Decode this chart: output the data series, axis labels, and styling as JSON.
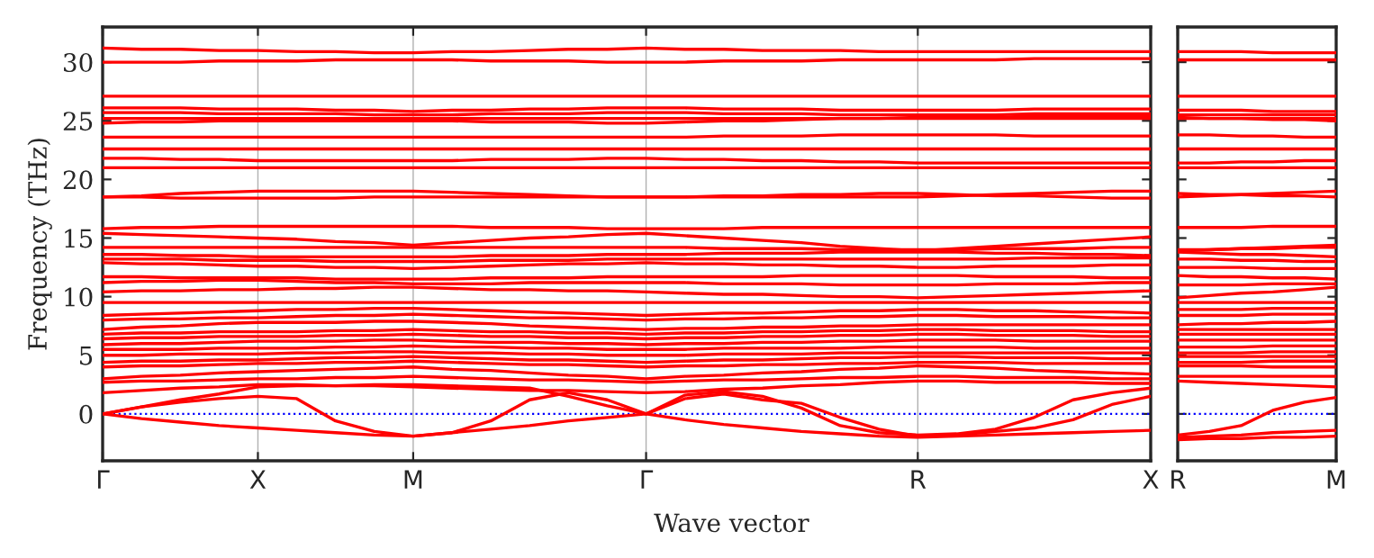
{
  "chart_data": [
    {
      "type": "line",
      "xlabel": "Wave vector",
      "ylabel": "Frequency (THz)",
      "ylim": [
        -4,
        33
      ],
      "categories": [
        "Γ",
        null,
        null,
        null,
        "X",
        null,
        null,
        null,
        "M",
        null,
        null,
        null,
        null,
        null,
        "Γ",
        null,
        null,
        null,
        null,
        null,
        null,
        "R",
        null,
        null,
        null,
        null,
        null,
        "X"
      ],
      "yticks": [
        0,
        5,
        10,
        15,
        20,
        25,
        30
      ],
      "grid": "x",
      "line_style": "solid",
      "marker": "none",
      "ref_lines": [
        {
          "axis": "y",
          "value": 0,
          "color": "#0000ff",
          "line_style": "dotted"
        }
      ],
      "series": [
        {
          "color": "#ff0000",
          "values": [
            31.2,
            31.1,
            31.1,
            31.0,
            31.0,
            30.9,
            30.9,
            30.8,
            30.8,
            30.9,
            30.9,
            31.0,
            31.1,
            31.1,
            31.2,
            31.1,
            31.1,
            31.0,
            31.0,
            31.0,
            30.9,
            30.9,
            30.9,
            30.9,
            30.9,
            30.9,
            30.9,
            30.9
          ]
        },
        {
          "color": "#ff0000",
          "values": [
            30.0,
            30.0,
            30.0,
            30.1,
            30.1,
            30.1,
            30.2,
            30.2,
            30.2,
            30.2,
            30.1,
            30.1,
            30.1,
            30.0,
            30.0,
            30.0,
            30.1,
            30.1,
            30.1,
            30.2,
            30.2,
            30.2,
            30.2,
            30.2,
            30.3,
            30.3,
            30.3,
            30.3
          ]
        },
        {
          "color": "#ff0000",
          "values": [
            27.1,
            27.1,
            27.1,
            27.1,
            27.1,
            27.1,
            27.1,
            27.1,
            27.1,
            27.1,
            27.1,
            27.1,
            27.1,
            27.1,
            27.1,
            27.1,
            27.1,
            27.1,
            27.1,
            27.1,
            27.1,
            27.1,
            27.1,
            27.1,
            27.1,
            27.1,
            27.1,
            27.1
          ]
        },
        {
          "color": "#ff0000",
          "values": [
            26.1,
            26.1,
            26.1,
            26.0,
            26.0,
            26.0,
            25.9,
            25.9,
            25.8,
            25.9,
            25.9,
            26.0,
            26.0,
            26.1,
            26.1,
            26.1,
            26.0,
            26.0,
            26.0,
            25.9,
            25.9,
            25.9,
            25.9,
            25.9,
            26.0,
            26.0,
            26.0,
            26.0
          ]
        },
        {
          "color": "#ff0000",
          "values": [
            25.7,
            25.7,
            25.7,
            25.6,
            25.6,
            25.6,
            25.6,
            25.5,
            25.5,
            25.5,
            25.6,
            25.6,
            25.6,
            25.7,
            25.7,
            25.7,
            25.6,
            25.6,
            25.6,
            25.5,
            25.5,
            25.5,
            25.5,
            25.5,
            25.6,
            25.6,
            25.6,
            25.6
          ]
        },
        {
          "color": "#ff0000",
          "values": [
            25.2,
            25.2,
            25.2,
            25.2,
            25.2,
            25.2,
            25.2,
            25.2,
            25.2,
            25.2,
            25.2,
            25.2,
            25.2,
            25.2,
            25.2,
            25.2,
            25.2,
            25.2,
            25.2,
            25.2,
            25.2,
            25.2,
            25.2,
            25.2,
            25.2,
            25.2,
            25.2,
            25.2
          ]
        },
        {
          "color": "#ff0000",
          "values": [
            24.8,
            24.9,
            24.9,
            25.0,
            25.0,
            25.0,
            25.0,
            25.0,
            25.0,
            25.0,
            24.9,
            24.9,
            24.9,
            24.8,
            24.8,
            24.9,
            25.0,
            25.0,
            25.1,
            25.2,
            25.2,
            25.3,
            25.3,
            25.3,
            25.4,
            25.4,
            25.4,
            25.4
          ]
        },
        {
          "color": "#ff0000",
          "values": [
            23.6,
            23.6,
            23.6,
            23.6,
            23.6,
            23.6,
            23.6,
            23.6,
            23.6,
            23.6,
            23.6,
            23.6,
            23.6,
            23.6,
            23.6,
            23.6,
            23.7,
            23.7,
            23.7,
            23.8,
            23.8,
            23.8,
            23.8,
            23.8,
            23.7,
            23.7,
            23.7,
            23.7
          ]
        },
        {
          "color": "#ff0000",
          "values": [
            22.6,
            22.6,
            22.6,
            22.6,
            22.6,
            22.6,
            22.6,
            22.6,
            22.6,
            22.6,
            22.6,
            22.6,
            22.6,
            22.6,
            22.6,
            22.6,
            22.6,
            22.6,
            22.6,
            22.6,
            22.6,
            22.6,
            22.6,
            22.6,
            22.6,
            22.6,
            22.6,
            22.6
          ]
        },
        {
          "color": "#ff0000",
          "values": [
            21.8,
            21.8,
            21.7,
            21.7,
            21.6,
            21.6,
            21.6,
            21.6,
            21.6,
            21.6,
            21.7,
            21.7,
            21.7,
            21.8,
            21.8,
            21.7,
            21.7,
            21.6,
            21.6,
            21.5,
            21.5,
            21.4,
            21.4,
            21.4,
            21.4,
            21.4,
            21.4,
            21.4
          ]
        },
        {
          "color": "#ff0000",
          "values": [
            21.0,
            21.0,
            21.0,
            21.0,
            21.0,
            21.0,
            21.0,
            21.0,
            21.0,
            21.0,
            21.0,
            21.0,
            21.0,
            21.0,
            21.0,
            21.0,
            21.0,
            21.0,
            21.0,
            21.0,
            21.0,
            21.0,
            21.0,
            21.0,
            21.0,
            21.0,
            21.0,
            21.0
          ]
        },
        {
          "color": "#ff0000",
          "values": [
            18.5,
            18.6,
            18.8,
            18.9,
            19.0,
            19.0,
            19.0,
            19.0,
            19.0,
            18.9,
            18.8,
            18.7,
            18.6,
            18.5,
            18.5,
            18.5,
            18.5,
            18.5,
            18.5,
            18.5,
            18.5,
            18.5,
            18.6,
            18.7,
            18.8,
            18.9,
            19.0,
            19.0
          ]
        },
        {
          "color": "#ff0000",
          "values": [
            18.5,
            18.5,
            18.4,
            18.4,
            18.4,
            18.4,
            18.4,
            18.5,
            18.5,
            18.5,
            18.5,
            18.5,
            18.5,
            18.5,
            18.5,
            18.5,
            18.6,
            18.6,
            18.7,
            18.7,
            18.8,
            18.8,
            18.7,
            18.6,
            18.6,
            18.5,
            18.4,
            18.4
          ]
        },
        {
          "color": "#ff0000",
          "values": [
            15.8,
            15.9,
            15.9,
            16.0,
            16.0,
            16.0,
            16.0,
            16.0,
            16.0,
            16.0,
            15.9,
            15.9,
            15.9,
            15.8,
            15.8,
            15.8,
            15.8,
            15.9,
            15.9,
            15.9,
            15.9,
            15.9,
            15.9,
            15.9,
            15.9,
            15.9,
            15.9,
            15.9
          ]
        },
        {
          "color": "#ff0000",
          "values": [
            15.4,
            15.3,
            15.2,
            15.1,
            15.0,
            14.9,
            14.7,
            14.6,
            14.4,
            14.6,
            14.8,
            15.0,
            15.1,
            15.3,
            15.4,
            15.2,
            15.0,
            14.8,
            14.6,
            14.3,
            14.1,
            13.9,
            14.1,
            14.3,
            14.5,
            14.7,
            14.9,
            15.1
          ]
        },
        {
          "color": "#ff0000",
          "values": [
            14.2,
            14.2,
            14.2,
            14.2,
            14.2,
            14.2,
            14.2,
            14.2,
            14.2,
            14.2,
            14.2,
            14.2,
            14.2,
            14.2,
            14.2,
            14.2,
            14.1,
            14.1,
            14.1,
            14.0,
            14.0,
            14.0,
            14.0,
            14.1,
            14.1,
            14.1,
            14.2,
            14.2
          ]
        },
        {
          "color": "#ff0000",
          "values": [
            13.6,
            13.6,
            13.5,
            13.5,
            13.4,
            13.4,
            13.4,
            13.4,
            13.4,
            13.4,
            13.5,
            13.5,
            13.5,
            13.6,
            13.6,
            13.6,
            13.7,
            13.7,
            13.7,
            13.8,
            13.8,
            13.8,
            13.8,
            13.7,
            13.7,
            13.6,
            13.6,
            13.5
          ]
        },
        {
          "color": "#ff0000",
          "values": [
            13.2,
            13.2,
            13.2,
            13.1,
            13.1,
            13.1,
            13.0,
            13.0,
            13.0,
            13.0,
            13.1,
            13.1,
            13.1,
            13.2,
            13.2,
            13.2,
            13.2,
            13.2,
            13.2,
            13.2,
            13.2,
            13.2,
            13.2,
            13.2,
            13.3,
            13.3,
            13.3,
            13.3
          ]
        },
        {
          "color": "#ff0000",
          "values": [
            12.9,
            12.8,
            12.8,
            12.7,
            12.6,
            12.6,
            12.5,
            12.5,
            12.4,
            12.5,
            12.6,
            12.7,
            12.8,
            12.8,
            12.9,
            12.8,
            12.8,
            12.7,
            12.7,
            12.6,
            12.6,
            12.5,
            12.5,
            12.6,
            12.6,
            12.6,
            12.7,
            12.7
          ]
        },
        {
          "color": "#ff0000",
          "values": [
            11.7,
            11.7,
            11.6,
            11.6,
            11.6,
            11.6,
            11.5,
            11.5,
            11.5,
            11.5,
            11.6,
            11.6,
            11.6,
            11.7,
            11.7,
            11.7,
            11.7,
            11.7,
            11.8,
            11.8,
            11.8,
            11.8,
            11.8,
            11.7,
            11.7,
            11.7,
            11.6,
            11.6
          ]
        },
        {
          "color": "#ff0000",
          "values": [
            11.2,
            11.3,
            11.3,
            11.4,
            11.4,
            11.3,
            11.2,
            11.2,
            11.1,
            11.1,
            11.1,
            11.2,
            11.2,
            11.2,
            11.2,
            11.2,
            11.1,
            11.1,
            11.1,
            11.0,
            11.0,
            11.0,
            11.0,
            11.1,
            11.1,
            11.1,
            11.2,
            11.2
          ]
        },
        {
          "color": "#ff0000",
          "values": [
            10.4,
            10.5,
            10.5,
            10.6,
            10.6,
            10.7,
            10.7,
            10.8,
            10.8,
            10.7,
            10.6,
            10.6,
            10.5,
            10.5,
            10.4,
            10.3,
            10.2,
            10.2,
            10.1,
            10.0,
            10.0,
            9.9,
            10.0,
            10.1,
            10.2,
            10.3,
            10.4,
            10.5
          ]
        },
        {
          "color": "#ff0000",
          "values": [
            9.5,
            9.5,
            9.5,
            9.5,
            9.5,
            9.5,
            9.5,
            9.5,
            9.5,
            9.5,
            9.5,
            9.5,
            9.5,
            9.5,
            9.5,
            9.5,
            9.5,
            9.5,
            9.5,
            9.5,
            9.5,
            9.5,
            9.5,
            9.5,
            9.5,
            9.5,
            9.5,
            9.5
          ]
        },
        {
          "color": "#ff0000",
          "values": [
            8.4,
            8.5,
            8.6,
            8.7,
            8.8,
            8.9,
            8.9,
            9.0,
            9.0,
            8.9,
            8.8,
            8.7,
            8.6,
            8.5,
            8.4,
            8.5,
            8.6,
            8.6,
            8.7,
            8.8,
            8.8,
            8.9,
            8.9,
            8.8,
            8.8,
            8.7,
            8.7,
            8.6
          ]
        },
        {
          "color": "#ff0000",
          "values": [
            8.0,
            8.1,
            8.1,
            8.2,
            8.2,
            8.3,
            8.4,
            8.4,
            8.5,
            8.4,
            8.3,
            8.2,
            8.2,
            8.1,
            8.0,
            8.1,
            8.1,
            8.2,
            8.2,
            8.3,
            8.3,
            8.4,
            8.4,
            8.3,
            8.3,
            8.3,
            8.2,
            8.2
          ]
        },
        {
          "color": "#ff0000",
          "values": [
            7.2,
            7.4,
            7.5,
            7.7,
            7.8,
            7.8,
            7.8,
            7.9,
            7.9,
            7.8,
            7.7,
            7.5,
            7.4,
            7.3,
            7.2,
            7.3,
            7.3,
            7.4,
            7.4,
            7.5,
            7.5,
            7.6,
            7.6,
            7.6,
            7.6,
            7.6,
            7.6,
            7.6
          ]
        },
        {
          "color": "#ff0000",
          "values": [
            6.8,
            6.9,
            6.9,
            7.0,
            7.0,
            7.0,
            7.1,
            7.1,
            7.2,
            7.1,
            7.0,
            7.0,
            6.9,
            6.9,
            6.8,
            6.9,
            6.9,
            7.0,
            7.0,
            7.1,
            7.1,
            7.2,
            7.2,
            7.1,
            7.1,
            7.1,
            7.0,
            7.0
          ]
        },
        {
          "color": "#ff0000",
          "values": [
            6.4,
            6.5,
            6.5,
            6.6,
            6.6,
            6.6,
            6.7,
            6.7,
            6.8,
            6.7,
            6.6,
            6.6,
            6.5,
            6.5,
            6.4,
            6.5,
            6.5,
            6.6,
            6.6,
            6.7,
            6.7,
            6.8,
            6.8,
            6.7,
            6.7,
            6.7,
            6.6,
            6.6
          ]
        },
        {
          "color": "#ff0000",
          "values": [
            5.9,
            6.0,
            6.0,
            6.1,
            6.2,
            6.2,
            6.2,
            6.3,
            6.3,
            6.2,
            6.1,
            6.1,
            6.0,
            6.0,
            5.9,
            6.0,
            6.0,
            6.1,
            6.1,
            6.2,
            6.2,
            6.3,
            6.3,
            6.3,
            6.2,
            6.2,
            6.2,
            6.2
          ]
        },
        {
          "color": "#ff0000",
          "values": [
            5.5,
            5.5,
            5.5,
            5.6,
            5.6,
            5.6,
            5.7,
            5.7,
            5.8,
            5.7,
            5.7,
            5.6,
            5.6,
            5.5,
            5.5,
            5.5,
            5.6,
            5.6,
            5.6,
            5.6,
            5.7,
            5.7,
            5.7,
            5.7,
            5.6,
            5.6,
            5.6,
            5.6
          ]
        },
        {
          "color": "#ff0000",
          "values": [
            5.0,
            5.0,
            5.1,
            5.1,
            5.1,
            5.2,
            5.2,
            5.3,
            5.3,
            5.2,
            5.2,
            5.1,
            5.1,
            5.0,
            5.0,
            5.0,
            5.1,
            5.1,
            5.1,
            5.2,
            5.2,
            5.2,
            5.2,
            5.2,
            5.2,
            5.2,
            5.2,
            5.2
          ]
        },
        {
          "color": "#ff0000",
          "values": [
            4.4,
            4.5,
            4.5,
            4.6,
            4.6,
            4.7,
            4.8,
            4.8,
            4.9,
            4.8,
            4.7,
            4.6,
            4.6,
            4.5,
            4.4,
            4.5,
            4.6,
            4.6,
            4.7,
            4.8,
            4.8,
            4.9,
            4.9,
            4.8,
            4.8,
            4.8,
            4.7,
            4.7
          ]
        },
        {
          "color": "#ff0000",
          "values": [
            4.0,
            4.1,
            4.1,
            4.2,
            4.3,
            4.3,
            4.4,
            4.4,
            4.5,
            4.4,
            4.3,
            4.2,
            4.2,
            4.1,
            4.0,
            4.1,
            4.1,
            4.2,
            4.2,
            4.3,
            4.3,
            4.4,
            4.4,
            4.4,
            4.3,
            4.3,
            4.3,
            4.3
          ]
        },
        {
          "color": "#ff0000",
          "values": [
            3.0,
            3.2,
            3.3,
            3.5,
            3.6,
            3.7,
            3.8,
            3.9,
            4.0,
            3.8,
            3.7,
            3.5,
            3.3,
            3.2,
            3.0,
            3.2,
            3.3,
            3.5,
            3.6,
            3.8,
            3.9,
            4.1,
            4.0,
            3.9,
            3.7,
            3.6,
            3.5,
            3.4
          ]
        },
        {
          "color": "#ff0000",
          "values": [
            2.7,
            2.8,
            2.8,
            2.9,
            3.0,
            3.0,
            3.1,
            3.1,
            3.2,
            3.1,
            3.0,
            2.9,
            2.9,
            2.8,
            2.7,
            2.8,
            2.9,
            2.9,
            3.0,
            3.1,
            3.1,
            3.2,
            3.2,
            3.1,
            3.1,
            3.1,
            3.0,
            3.0
          ]
        },
        {
          "color": "#ff0000",
          "values": [
            1.8,
            2.0,
            2.2,
            2.3,
            2.5,
            2.5,
            2.4,
            2.4,
            2.3,
            2.2,
            2.1,
            2.0,
            2.0,
            1.9,
            1.8,
            1.9,
            2.1,
            2.2,
            2.4,
            2.5,
            2.7,
            2.8,
            2.8,
            2.7,
            2.7,
            2.7,
            2.6,
            2.6
          ]
        },
        {
          "color": "#ff0000",
          "values": [
            0,
            -0.4,
            -0.7,
            -1.0,
            -1.2,
            -1.4,
            -1.6,
            -1.8,
            -1.9,
            -1.6,
            -1.3,
            -1.0,
            -0.6,
            -0.3,
            0,
            -0.5,
            -0.9,
            -1.2,
            -1.5,
            -1.7,
            -1.9,
            -2.0,
            -1.9,
            -1.8,
            -1.7,
            -1.6,
            -1.5,
            -1.4
          ]
        },
        {
          "color": "#ff0000",
          "values": [
            0,
            0.6,
            1.2,
            1.7,
            2.3,
            2.4,
            2.4,
            2.5,
            2.5,
            2.4,
            2.3,
            2.2,
            1.5,
            0.7,
            0,
            1.6,
            1.9,
            1.5,
            0.5,
            -1.0,
            -1.6,
            -1.8,
            -1.7,
            -1.3,
            -0.3,
            1.2,
            1.8,
            2.2
          ]
        },
        {
          "color": "#ff0000",
          "values": [
            0,
            0.6,
            1.0,
            1.3,
            1.5,
            1.3,
            -0.6,
            -1.5,
            -1.9,
            -1.6,
            -0.6,
            1.2,
            1.8,
            1.2,
            0,
            1.3,
            1.7,
            1.2,
            0.9,
            -0.3,
            -1.3,
            -1.9,
            -1.8,
            -1.5,
            -1.2,
            -0.5,
            0.8,
            1.5
          ]
        }
      ]
    },
    {
      "type": "line",
      "ylim": [
        -4,
        33
      ],
      "tick_labels": "x",
      "categories": [
        "R",
        null,
        null,
        null,
        null,
        "M"
      ],
      "yticks": [
        0,
        5,
        10,
        15,
        20,
        25,
        30
      ],
      "line_style": "solid",
      "marker": "none",
      "ref_lines": [
        {
          "axis": "y",
          "value": 0,
          "color": "#0000ff",
          "line_style": "dotted"
        }
      ],
      "series": [
        {
          "color": "#ff0000",
          "values": [
            30.9,
            30.9,
            30.9,
            30.8,
            30.8,
            30.8
          ]
        },
        {
          "color": "#ff0000",
          "values": [
            30.2,
            30.2,
            30.2,
            30.2,
            30.2,
            30.2
          ]
        },
        {
          "color": "#ff0000",
          "values": [
            27.1,
            27.1,
            27.1,
            27.1,
            27.1,
            27.1
          ]
        },
        {
          "color": "#ff0000",
          "values": [
            25.9,
            25.9,
            25.9,
            25.8,
            25.8,
            25.8
          ]
        },
        {
          "color": "#ff0000",
          "values": [
            25.5,
            25.5,
            25.5,
            25.5,
            25.5,
            25.5
          ]
        },
        {
          "color": "#ff0000",
          "values": [
            25.2,
            25.2,
            25.2,
            25.2,
            25.2,
            25.2
          ]
        },
        {
          "color": "#ff0000",
          "values": [
            25.3,
            25.2,
            25.2,
            25.1,
            25.1,
            25.0
          ]
        },
        {
          "color": "#ff0000",
          "values": [
            23.8,
            23.8,
            23.7,
            23.7,
            23.6,
            23.6
          ]
        },
        {
          "color": "#ff0000",
          "values": [
            22.6,
            22.6,
            22.6,
            22.6,
            22.6,
            22.6
          ]
        },
        {
          "color": "#ff0000",
          "values": [
            21.4,
            21.4,
            21.5,
            21.5,
            21.6,
            21.6
          ]
        },
        {
          "color": "#ff0000",
          "values": [
            21.0,
            21.0,
            21.0,
            21.0,
            21.0,
            21.0
          ]
        },
        {
          "color": "#ff0000",
          "values": [
            18.5,
            18.6,
            18.7,
            18.8,
            18.9,
            19.0
          ]
        },
        {
          "color": "#ff0000",
          "values": [
            18.8,
            18.7,
            18.7,
            18.6,
            18.6,
            18.5
          ]
        },
        {
          "color": "#ff0000",
          "values": [
            15.9,
            15.9,
            15.9,
            16.0,
            16.0,
            16.0
          ]
        },
        {
          "color": "#ff0000",
          "values": [
            13.9,
            14.0,
            14.1,
            14.2,
            14.3,
            14.4
          ]
        },
        {
          "color": "#ff0000",
          "values": [
            14.0,
            14.0,
            14.1,
            14.1,
            14.2,
            14.2
          ]
        },
        {
          "color": "#ff0000",
          "values": [
            13.8,
            13.7,
            13.6,
            13.6,
            13.5,
            13.4
          ]
        },
        {
          "color": "#ff0000",
          "values": [
            13.2,
            13.2,
            13.1,
            13.1,
            13.0,
            13.0
          ]
        },
        {
          "color": "#ff0000",
          "values": [
            12.5,
            12.5,
            12.5,
            12.4,
            12.4,
            12.4
          ]
        },
        {
          "color": "#ff0000",
          "values": [
            11.8,
            11.7,
            11.7,
            11.6,
            11.6,
            11.5
          ]
        },
        {
          "color": "#ff0000",
          "values": [
            11.0,
            11.0,
            11.0,
            11.1,
            11.1,
            11.1
          ]
        },
        {
          "color": "#ff0000",
          "values": [
            9.9,
            10.1,
            10.3,
            10.4,
            10.6,
            10.8
          ]
        },
        {
          "color": "#ff0000",
          "values": [
            9.5,
            9.5,
            9.5,
            9.5,
            9.5,
            9.5
          ]
        },
        {
          "color": "#ff0000",
          "values": [
            8.9,
            8.9,
            8.9,
            9.0,
            9.0,
            9.0
          ]
        },
        {
          "color": "#ff0000",
          "values": [
            8.4,
            8.4,
            8.4,
            8.5,
            8.5,
            8.5
          ]
        },
        {
          "color": "#ff0000",
          "values": [
            7.6,
            7.7,
            7.7,
            7.8,
            7.8,
            7.9
          ]
        },
        {
          "color": "#ff0000",
          "values": [
            7.2,
            7.2,
            7.2,
            7.2,
            7.2,
            7.2
          ]
        },
        {
          "color": "#ff0000",
          "values": [
            6.8,
            6.8,
            6.8,
            6.8,
            6.8,
            6.8
          ]
        },
        {
          "color": "#ff0000",
          "values": [
            6.3,
            6.3,
            6.3,
            6.3,
            6.3,
            6.3
          ]
        },
        {
          "color": "#ff0000",
          "values": [
            5.7,
            5.7,
            5.7,
            5.8,
            5.8,
            5.8
          ]
        },
        {
          "color": "#ff0000",
          "values": [
            5.2,
            5.2,
            5.2,
            5.3,
            5.3,
            5.3
          ]
        },
        {
          "color": "#ff0000",
          "values": [
            4.9,
            4.9,
            4.9,
            4.9,
            4.9,
            4.9
          ]
        },
        {
          "color": "#ff0000",
          "values": [
            4.4,
            4.4,
            4.4,
            4.5,
            4.5,
            4.5
          ]
        },
        {
          "color": "#ff0000",
          "values": [
            4.1,
            4.1,
            4.1,
            4.0,
            4.0,
            4.0
          ]
        },
        {
          "color": "#ff0000",
          "values": [
            3.2,
            3.2,
            3.2,
            3.2,
            3.2,
            3.2
          ]
        },
        {
          "color": "#ff0000",
          "values": [
            2.8,
            2.7,
            2.6,
            2.5,
            2.4,
            2.3
          ]
        },
        {
          "color": "#ff0000",
          "values": [
            -1.8,
            -1.5,
            -1.0,
            0.3,
            1.0,
            1.4
          ]
        },
        {
          "color": "#ff0000",
          "values": [
            -2.0,
            -1.9,
            -1.8,
            -1.6,
            -1.5,
            -1.4
          ]
        },
        {
          "color": "#ff0000",
          "values": [
            -2.2,
            -2.1,
            -2.1,
            -2.0,
            -2.0,
            -1.9
          ]
        }
      ]
    }
  ]
}
